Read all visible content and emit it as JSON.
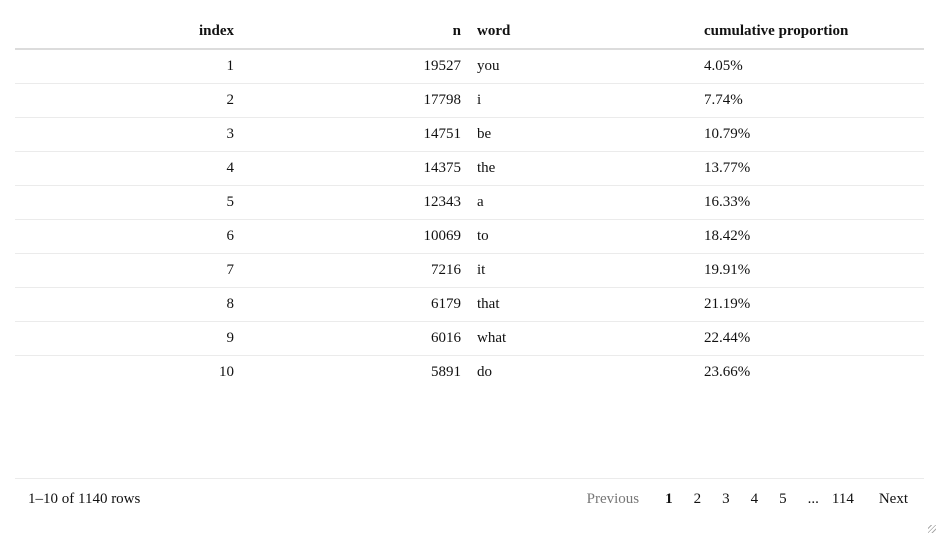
{
  "table": {
    "columns": [
      "index",
      "n",
      "word",
      "cumulative proportion"
    ],
    "rows": [
      {
        "index": "1",
        "n": "19527",
        "word": "you",
        "cumulative_proportion": "4.05%"
      },
      {
        "index": "2",
        "n": "17798",
        "word": "i",
        "cumulative_proportion": "7.74%"
      },
      {
        "index": "3",
        "n": "14751",
        "word": "be",
        "cumulative_proportion": "10.79%"
      },
      {
        "index": "4",
        "n": "14375",
        "word": "the",
        "cumulative_proportion": "13.77%"
      },
      {
        "index": "5",
        "n": "12343",
        "word": "a",
        "cumulative_proportion": "16.33%"
      },
      {
        "index": "6",
        "n": "10069",
        "word": "to",
        "cumulative_proportion": "18.42%"
      },
      {
        "index": "7",
        "n": "7216",
        "word": "it",
        "cumulative_proportion": "19.91%"
      },
      {
        "index": "8",
        "n": "6179",
        "word": "that",
        "cumulative_proportion": "21.19%"
      },
      {
        "index": "9",
        "n": "6016",
        "word": "what",
        "cumulative_proportion": "22.44%"
      },
      {
        "index": "10",
        "n": "5891",
        "word": "do",
        "cumulative_proportion": "23.66%"
      }
    ]
  },
  "footer": {
    "row_info": "1–10 of 1140 rows",
    "pagination": {
      "previous": "Previous",
      "pages": [
        "1",
        "2",
        "3",
        "4",
        "5"
      ],
      "current": "1",
      "ellipsis": "...",
      "last": "114",
      "next": "Next"
    }
  }
}
